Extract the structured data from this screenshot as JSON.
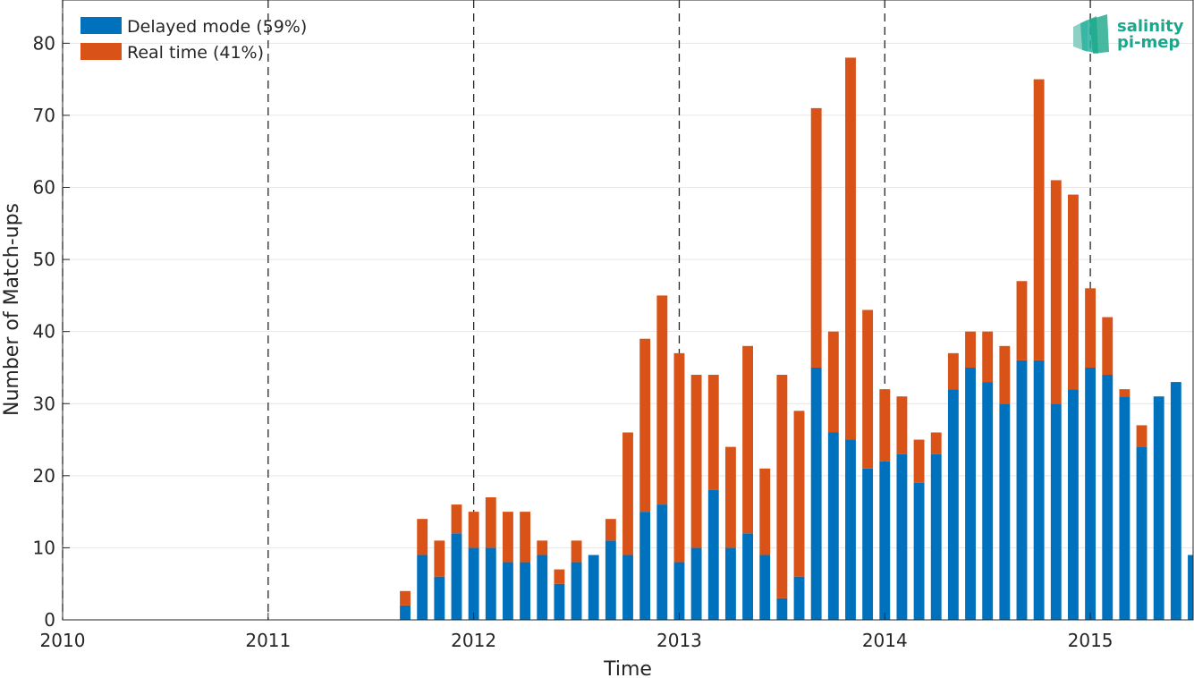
{
  "chart_data": {
    "type": "bar",
    "stacked": true,
    "xlabel": "Time",
    "ylabel": "Number of Match-ups",
    "ylim": [
      0,
      86
    ],
    "xlim": [
      "2010-01",
      "2015-07"
    ],
    "xticks": [
      "2010",
      "2011",
      "2012",
      "2013",
      "2014",
      "2015"
    ],
    "yticks": [
      0,
      10,
      20,
      30,
      40,
      50,
      60,
      70,
      80
    ],
    "grid": true,
    "year_separators": "dashed vertical lines at each January",
    "legend_position": "top-left",
    "colors": {
      "delayed": "#0072BD",
      "realtime": "#D95319"
    },
    "months": [
      "2011-09",
      "2011-10",
      "2011-11",
      "2011-12",
      "2012-01",
      "2012-02",
      "2012-03",
      "2012-04",
      "2012-05",
      "2012-06",
      "2012-07",
      "2012-08",
      "2012-09",
      "2012-10",
      "2012-11",
      "2012-12",
      "2013-01",
      "2013-02",
      "2013-03",
      "2013-04",
      "2013-05",
      "2013-06",
      "2013-07",
      "2013-08",
      "2013-09",
      "2013-10",
      "2013-11",
      "2013-12",
      "2014-01",
      "2014-02",
      "2014-03",
      "2014-04",
      "2014-05",
      "2014-06",
      "2014-07",
      "2014-08",
      "2014-09",
      "2014-10",
      "2014-11",
      "2014-12",
      "2015-01",
      "2015-02",
      "2015-03",
      "2015-04",
      "2015-05",
      "2015-06",
      "2015-07"
    ],
    "series": [
      {
        "name": "Delayed mode (59%)",
        "values": [
          2,
          9,
          6,
          12,
          10,
          10,
          8,
          8,
          9,
          5,
          8,
          9,
          11,
          9,
          15,
          16,
          8,
          10,
          18,
          10,
          12,
          9,
          3,
          6,
          35,
          26,
          25,
          21,
          22,
          23,
          19,
          23,
          32,
          35,
          33,
          30,
          36,
          36,
          30,
          32,
          35,
          34,
          31,
          24,
          31,
          33,
          9
        ]
      },
      {
        "name": "Real time (41%)",
        "values": [
          2,
          5,
          5,
          4,
          5,
          7,
          7,
          7,
          2,
          2,
          3,
          0,
          3,
          17,
          24,
          29,
          29,
          24,
          16,
          14,
          26,
          12,
          31,
          23,
          36,
          14,
          53,
          22,
          10,
          8,
          6,
          3,
          5,
          5,
          7,
          8,
          11,
          39,
          31,
          27,
          11,
          8,
          1,
          3,
          0,
          0,
          0
        ]
      }
    ]
  },
  "logo": {
    "line1": "salinity",
    "line2": "pi-mep",
    "colors": [
      "#1aa88a",
      "#2ab3a0",
      "#8ed1c4"
    ]
  }
}
